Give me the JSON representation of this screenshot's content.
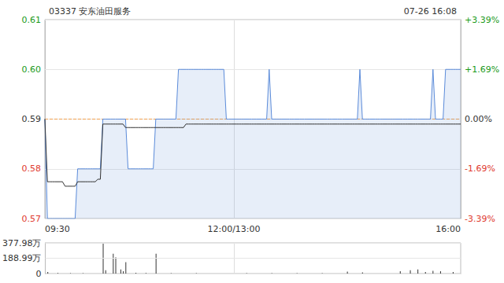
{
  "chart_data": [
    {
      "type": "line",
      "title": "03337 安东油田服务",
      "subtitle": "07-26 16:08",
      "categories": [
        "09:30",
        null,
        null,
        null,
        null,
        null,
        null,
        null,
        null,
        null,
        null,
        null,
        null,
        null,
        null,
        null,
        null,
        null,
        null,
        null,
        null,
        null,
        null,
        null,
        null,
        null,
        null,
        null,
        null,
        null,
        null,
        null,
        null,
        null,
        null,
        null,
        null,
        null,
        null,
        null,
        null,
        null,
        null,
        null,
        null,
        null,
        null,
        null,
        null,
        null,
        null,
        null,
        null,
        null,
        null,
        null,
        null,
        null,
        null,
        null,
        null,
        null,
        null,
        null,
        null,
        null,
        null,
        null,
        null,
        null,
        null,
        null,
        null,
        null,
        null,
        "12:00/13:00",
        null,
        null,
        null,
        null,
        null,
        null,
        null,
        null,
        null,
        null,
        null,
        null,
        null,
        null,
        null,
        null,
        null,
        null,
        null,
        null,
        null,
        null,
        null,
        null,
        null,
        null,
        null,
        null,
        null,
        null,
        null,
        null,
        null,
        null,
        null,
        null,
        null,
        null,
        null,
        null,
        null,
        null,
        null,
        null,
        null,
        null,
        null,
        null,
        null,
        null,
        null,
        null,
        null,
        null,
        null,
        null,
        null,
        null,
        null,
        null,
        null,
        null,
        null,
        null,
        null,
        null,
        null,
        null,
        null,
        null,
        null,
        null,
        null,
        null,
        null,
        null,
        null,
        null,
        null,
        null,
        null,
        null,
        null,
        null,
        null,
        null,
        null,
        null,
        null,
        "16:00"
      ],
      "series": [
        {
          "type": "area",
          "color": "#5b8bd9",
          "values": [
            0.59,
            0.57,
            0.57,
            0.57,
            0.57,
            0.57,
            0.57,
            0.57,
            0.57,
            0.57,
            0.57,
            0.57,
            0.57,
            0.58,
            0.58,
            0.58,
            0.58,
            0.58,
            0.58,
            0.58,
            0.58,
            0.58,
            0.58,
            0.59,
            0.59,
            0.59,
            0.59,
            0.59,
            0.59,
            0.59,
            0.59,
            0.59,
            0.59,
            0.58,
            0.58,
            0.58,
            0.58,
            0.58,
            0.58,
            0.58,
            0.58,
            0.58,
            0.58,
            0.58,
            0.59,
            0.59,
            0.59,
            0.59,
            0.59,
            0.59,
            0.59,
            0.59,
            0.59,
            0.6,
            0.6,
            0.6,
            0.6,
            0.6,
            0.6,
            0.6,
            0.6,
            0.6,
            0.6,
            0.6,
            0.6,
            0.6,
            0.6,
            0.6,
            0.6,
            0.6,
            0.6,
            0.6,
            0.59,
            0.59,
            0.59,
            0.59,
            0.59,
            0.59,
            0.59,
            0.59,
            0.59,
            0.59,
            0.59,
            0.59,
            0.59,
            0.59,
            0.59,
            0.59,
            0.59,
            0.6,
            0.59,
            0.59,
            0.59,
            0.59,
            0.59,
            0.59,
            0.59,
            0.59,
            0.59,
            0.59,
            0.59,
            0.59,
            0.59,
            0.59,
            0.59,
            0.59,
            0.59,
            0.59,
            0.59,
            0.59,
            0.59,
            0.59,
            0.59,
            0.59,
            0.59,
            0.59,
            0.59,
            0.59,
            0.59,
            0.59,
            0.59,
            0.59,
            0.59,
            0.59,
            0.59,
            0.6,
            0.59,
            0.59,
            0.59,
            0.59,
            0.59,
            0.59,
            0.59,
            0.59,
            0.59,
            0.59,
            0.59,
            0.59,
            0.59,
            0.59,
            0.59,
            0.59,
            0.59,
            0.59,
            0.59,
            0.59,
            0.59,
            0.59,
            0.59,
            0.59,
            0.59,
            0.59,
            0.59,
            0.59,
            0.6,
            0.59,
            0.59,
            0.59,
            0.59,
            0.6,
            0.6,
            0.6,
            0.6,
            0.6,
            0.6,
            0.6
          ]
        },
        {
          "type": "line",
          "color": "#333333",
          "values": [
            0.59,
            0.5774,
            0.5774,
            0.5774,
            0.5774,
            0.5774,
            0.5774,
            0.5774,
            0.5765,
            0.5765,
            0.5765,
            0.5765,
            0.5765,
            0.5774,
            0.5774,
            0.5774,
            0.5774,
            0.5774,
            0.5774,
            0.5774,
            0.5774,
            0.5779,
            0.5779,
            0.589,
            0.589,
            0.589,
            0.589,
            0.589,
            0.589,
            0.589,
            0.589,
            0.589,
            0.5883,
            0.5883,
            0.5883,
            0.5883,
            0.5883,
            0.5883,
            0.5883,
            0.5883,
            0.5883,
            0.5883,
            0.5883,
            0.5883,
            0.5883,
            0.5883,
            0.5883,
            0.5883,
            0.5883,
            0.5883,
            0.5883,
            0.5883,
            0.5883,
            0.5883,
            0.5883,
            0.5883,
            0.589,
            0.589,
            0.589,
            0.589,
            0.589,
            0.589,
            0.589,
            0.589,
            0.589,
            0.589,
            0.589,
            0.589,
            0.589,
            0.589,
            0.589,
            0.589,
            0.589,
            0.589,
            0.589,
            0.589,
            0.589,
            0.589,
            0.589,
            0.589,
            0.589,
            0.589,
            0.589,
            0.589,
            0.589,
            0.589,
            0.589,
            0.589,
            0.589,
            0.589,
            0.589,
            0.589,
            0.589,
            0.589,
            0.589,
            0.589,
            0.589,
            0.589,
            0.589,
            0.589,
            0.589,
            0.589,
            0.589,
            0.589,
            0.589,
            0.589,
            0.589,
            0.589,
            0.589,
            0.589,
            0.589,
            0.589,
            0.589,
            0.589,
            0.589,
            0.589,
            0.589,
            0.589,
            0.589,
            0.589,
            0.589,
            0.589,
            0.589,
            0.589,
            0.589,
            0.589,
            0.589,
            0.589,
            0.589,
            0.589,
            0.589,
            0.589,
            0.589,
            0.589,
            0.589,
            0.589,
            0.589,
            0.589,
            0.589,
            0.589,
            0.589,
            0.589,
            0.589,
            0.589,
            0.589,
            0.589,
            0.589,
            0.589,
            0.589,
            0.589,
            0.589,
            0.589,
            0.589,
            0.589,
            0.589,
            0.589,
            0.589,
            0.589,
            0.589,
            0.589,
            0.589,
            0.589,
            0.589,
            0.589,
            0.589,
            0.589
          ]
        }
      ],
      "ylim": [
        0.57,
        0.61
      ],
      "yticks": [
        0.57,
        0.58,
        0.59,
        {
          "value": 0.6,
          "label": "0.60"
        },
        0.61
      ],
      "y2lim": [
        -3.39,
        3.39
      ],
      "y2ticks": [
        {
          "value": -3.39,
          "label": "-3.39%"
        },
        {
          "value": -1.69,
          "label": "-1.69%"
        },
        {
          "value": 0,
          "label": "0.00%"
        },
        {
          "value": 1.69,
          "label": "+1.69%"
        },
        {
          "value": 3.39,
          "label": "+3.39%"
        }
      ],
      "grid": true
    },
    {
      "type": "bar",
      "categories": [
        "09:30",
        null,
        null,
        null,
        null,
        null,
        null,
        null,
        null,
        null,
        null,
        null,
        null,
        null,
        null,
        null,
        null,
        null,
        null,
        null,
        null,
        null,
        null,
        null,
        null,
        null,
        null,
        null,
        null,
        null,
        null,
        null,
        null,
        null,
        null,
        null,
        null,
        null,
        null,
        null,
        null,
        null,
        null,
        null,
        null,
        null,
        null,
        null,
        null,
        null,
        null,
        null,
        null,
        null,
        null,
        null,
        null,
        null,
        null,
        null,
        null,
        null,
        null,
        null,
        null,
        null,
        null,
        null,
        null,
        null,
        null,
        null,
        null,
        null,
        null,
        "12:00/13:00",
        null,
        null,
        null,
        null,
        null,
        null,
        null,
        null,
        null,
        null,
        null,
        null,
        null,
        null,
        null,
        null,
        null,
        null,
        null,
        null,
        null,
        null,
        null,
        null,
        null,
        null,
        null,
        null,
        null,
        null,
        null,
        null,
        null,
        null,
        null,
        null,
        null,
        null,
        null,
        null,
        null,
        null,
        null,
        null,
        null,
        null,
        null,
        null,
        null,
        null,
        null,
        null,
        null,
        null,
        null,
        null,
        null,
        null,
        null,
        null,
        null,
        null,
        null,
        null,
        null,
        null,
        null,
        null,
        null,
        null,
        null,
        null,
        null,
        null,
        null,
        null,
        null,
        null,
        null,
        null,
        null,
        null,
        null,
        null,
        null,
        null,
        null,
        null,
        null,
        "16:00"
      ],
      "values": [
        0,
        20,
        0,
        0,
        0,
        8,
        0,
        0,
        0,
        0,
        5,
        0,
        0,
        0,
        0,
        6,
        0,
        0,
        0,
        0,
        0,
        0,
        0,
        377.98,
        40,
        0,
        0,
        245,
        200,
        0,
        50,
        30,
        140,
        0,
        0,
        0,
        10,
        0,
        0,
        0,
        8,
        0,
        0,
        0,
        245,
        0,
        0,
        0,
        0,
        0,
        6,
        0,
        0,
        0,
        0,
        0,
        0,
        0,
        0,
        0,
        5,
        0,
        0,
        0,
        0,
        0,
        0,
        0,
        0,
        0,
        0,
        0,
        0,
        0,
        0,
        0,
        0,
        0,
        0,
        0,
        4,
        0,
        0,
        0,
        0,
        0,
        0,
        0,
        0,
        0,
        6,
        0,
        0,
        0,
        0,
        0,
        0,
        0,
        0,
        0,
        5,
        0,
        0,
        0,
        0,
        0,
        0,
        0,
        0,
        0,
        4,
        0,
        0,
        0,
        0,
        0,
        0,
        0,
        0,
        0,
        25,
        0,
        0,
        0,
        0,
        0,
        15,
        0,
        0,
        0,
        0,
        0,
        0,
        0,
        0,
        0,
        0,
        0,
        0,
        0,
        0,
        30,
        0,
        0,
        0,
        40,
        0,
        0,
        50,
        0,
        0,
        20,
        0,
        0,
        35,
        0,
        0,
        30,
        0,
        0,
        0,
        0,
        20,
        0,
        0,
        0
      ],
      "color": "#333333",
      "ylim": [
        0,
        377.98
      ],
      "yticks": [
        0,
        {
          "value": 188.99,
          "label": "188.99万"
        },
        {
          "value": 377.98,
          "label": "377.98万"
        }
      ],
      "tick_labels": "y",
      "grid": true
    }
  ]
}
